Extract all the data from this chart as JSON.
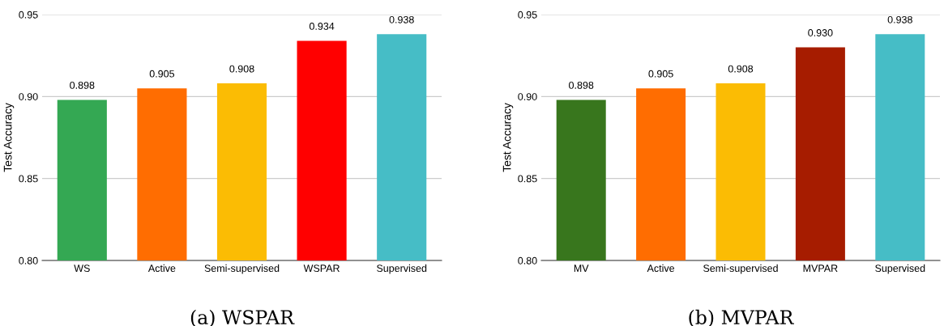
{
  "chart_data": [
    {
      "type": "bar",
      "categories": [
        "WS",
        "Active",
        "Semi-supervised",
        "WSPAR",
        "Supervised"
      ],
      "values": [
        0.898,
        0.905,
        0.908,
        0.934,
        0.938
      ],
      "colors": [
        "#34a853",
        "#ff6d01",
        "#fbbc04",
        "#ff0000",
        "#46bdc6"
      ],
      "ylabel": "Test Accuracy",
      "ylim": [
        0.8,
        0.95
      ],
      "yticks": [
        {
          "value": 0.8,
          "label": "0.80"
        },
        {
          "value": 0.85,
          "label": "0.85"
        },
        {
          "value": 0.9,
          "label": "0.90"
        },
        {
          "value": 0.95,
          "label": "0.95"
        }
      ],
      "grid": "y",
      "data_labels": true,
      "annotations": [
        "(a) WSPAR"
      ]
    },
    {
      "type": "bar",
      "categories": [
        "MV",
        "Active",
        "Semi-supervised",
        "MVPAR",
        "Supervised"
      ],
      "values": [
        0.898,
        0.905,
        0.908,
        0.93,
        0.938
      ],
      "value_labels": [
        "0.898",
        "0.905",
        "0.908",
        "0.930",
        "0.938"
      ],
      "colors": [
        "#38761d",
        "#ff6d01",
        "#fbbc04",
        "#a61c00",
        "#46bdc6"
      ],
      "ylabel": "Test Accuracy",
      "ylim": [
        0.8,
        0.95
      ],
      "yticks": [
        {
          "value": 0.8,
          "label": "0.80"
        },
        {
          "value": 0.85,
          "label": "0.85"
        },
        {
          "value": 0.9,
          "label": "0.90"
        },
        {
          "value": 0.95,
          "label": "0.95"
        }
      ],
      "grid": "y",
      "annotations": [
        "(b) MVPAR"
      ]
    }
  ]
}
